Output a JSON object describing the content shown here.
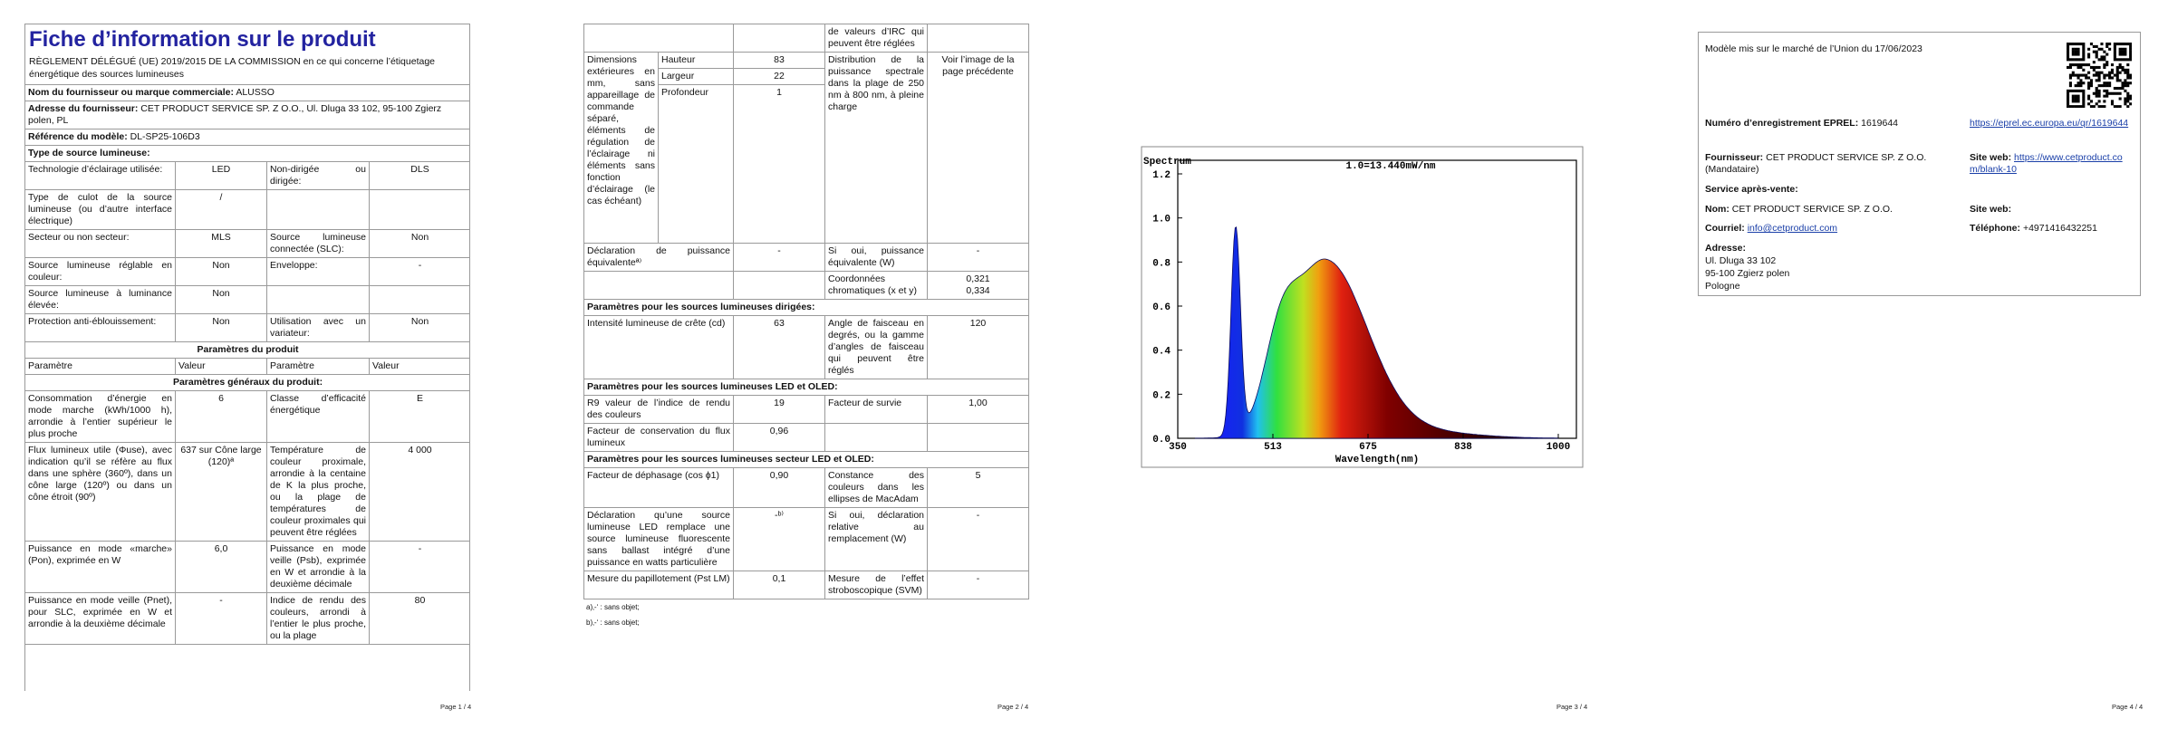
{
  "page1": {
    "title": "Fiche d’information sur le produit",
    "regulation": "RÈGLEMENT DÉLÉGUÉ (UE) 2019/2015 DE LA COMMISSION en ce qui concerne l’étiquetage énergétique des sources lumineuses",
    "supplier": {
      "label": "Nom du fournisseur ou marque commerciale:",
      "value": "ALUSSO"
    },
    "address": {
      "label": "Adresse du fournisseur:",
      "value": "CET PRODUCT SERVICE SP. Z O.O., Ul. Dluga 33 102, 95-100 Zgierz polen, PL"
    },
    "model": {
      "label": "Référence du modèle:",
      "value": "DL-SP25-106D3"
    },
    "type_heading": "Type de source lumineuse:",
    "type_rows": [
      [
        "Technologie d’éclairage utilisée:",
        "LED",
        "Non-dirigée ou dirigée:",
        "DLS"
      ],
      [
        "Type de culot de la source lumineuse (ou d’autre interface électrique)",
        "/"
      ],
      [
        "Secteur ou non secteur:",
        "MLS",
        "Source lumineuse connectée (SLC):",
        "Non"
      ],
      [
        "Source lumineuse réglable en couleur:",
        "Non",
        "Enveloppe:",
        "-"
      ],
      [
        "Source lumineuse à luminance élevée:",
        "Non"
      ],
      [
        "Protection anti-éblouissement:",
        "Non",
        "Utilisation avec un variateur:",
        "Non"
      ]
    ],
    "params_heading": "Paramètres du produit",
    "header": [
      "Paramètre",
      "Valeur",
      "Paramètre",
      "Valeur"
    ],
    "general_heading": "Paramètres généraux du produit:",
    "general_rows": [
      [
        "Consommation d’énergie en mode marche (kWh/1000 h), arrondie à l’entier supérieur le plus proche",
        "6",
        "Classe d’efficacité énergétique",
        "E"
      ],
      [
        "Flux lumineux utile (Φuse), avec indication qu’il se réfère au flux dans une sphère (360º), dans un cône large (120º) ou dans un cône étroit (90º)",
        "637 sur Cône large (120)ª",
        "Température de couleur proximale, arrondie à la centaine de K la plus proche, ou la plage de températures de couleur proximales qui peuvent être réglées",
        "4 000"
      ],
      [
        "Puissance en mode «marche» (Pon), exprimée en W",
        "6,0",
        "Puissance en mode veille (Psb), exprimée en W et arrondie à la deuxième décimale",
        "-"
      ],
      [
        "Puissance en mode veille (Pnet), pour SLC, exprimée en W et arrondie à la deuxième décimale",
        "-",
        "Indice de rendu des couleurs, arrondi à l’entier le plus proche, ou la plage",
        "80"
      ]
    ],
    "page_number": "Page 1 / 4"
  },
  "page2": {
    "cri_continued": "de valeurs d’IRC qui peuvent être réglées",
    "dimensions": {
      "label": "Dimensions extérieures en mm, sans appareillage de commande séparé, éléments de régulation de l’éclairage ni éléments sans fonction d’éclairage (le cas échéant)",
      "rows": [
        [
          "Hauteur",
          "83"
        ],
        [
          "Largeur",
          "22"
        ],
        [
          "Profondeur",
          "1"
        ]
      ],
      "spectral_label": "Distribution de la puissance spectrale dans la plage de 250 nm à 800 nm, à pleine charge",
      "spectral_value": "Voir l’image de la page précédente"
    },
    "equivalent": [
      "Déclaration de puissance équivalenteª⁾",
      "-",
      "Si oui, puissance équivalente (W)",
      "-"
    ],
    "chromaticity": {
      "label": "Coordonnées chromatiques (x et y)",
      "x": "0,321",
      "y": "0,334"
    },
    "directional_heading": "Paramètres pour les sources lumineuses dirigées:",
    "directional_row": [
      "Intensité lumineuse de crête (cd)",
      "63",
      "Angle de faisceau en degrés, ou la gamme d’angles de faisceau qui peuvent être réglés",
      "120"
    ],
    "led_heading": "Paramètres pour les sources lumineuses LED et OLED:",
    "led_rows": [
      [
        "R9 valeur de l’indice de rendu des couleurs",
        "19",
        "Facteur de survie",
        "1,00"
      ],
      [
        "Facteur de conservation du flux lumineux",
        "0,96"
      ]
    ],
    "mains_heading": "Paramètres pour les sources lumineuses secteur LED et OLED:",
    "mains_rows": [
      [
        "Facteur de déphasage (cos ϕ1)",
        "0,90",
        "Constance des couleurs dans les ellipses de MacAdam",
        "5"
      ],
      [
        "Déclaration qu’une source lumineuse LED remplace une source lumineuse fluorescente sans ballast intégré d’une puissance en watts particulière",
        "-ᵇ⁾",
        "Si oui, déclaration relative au remplacement (W)",
        "-"
      ],
      [
        "Mesure du papillotement (Pst LM)",
        "0,1",
        "Mesure de l’effet stroboscopique (SVM)",
        "-"
      ]
    ],
    "notes": [
      "a)‚-‘ : sans objet;",
      "b)‚-‘ : sans objet;"
    ],
    "page_number": "Page 2 / 4"
  },
  "page3": {
    "figure": {
      "title": "Spectrum",
      "scale": "1.0=13.440mW/nm",
      "yticks": [
        "1.2",
        "1.0",
        "0.8",
        "0.6",
        "0.4",
        "0.2",
        "0.0"
      ],
      "xticks": [
        "350",
        "513",
        "675",
        "838",
        "1000"
      ],
      "xlabel": "Wavelength(nm)"
    },
    "page_number": "Page 3 / 4"
  },
  "page4": {
    "market": "Modèle mis sur le marché de l’Union du 17/06/2023",
    "eprel": {
      "label": "Numéro d’enregistrement EPREL:",
      "value": "1619644",
      "link": "https://eprel.ec.europa.eu/qr/1619644"
    },
    "supplier": {
      "label": "Fournisseur:",
      "value": "CET PRODUCT SERVICE SP. Z O.O. (Mandataire)",
      "site_label": "Site web:",
      "site": "https://www.cetproduct.com/blank-10"
    },
    "service_heading": "Service après-vente:",
    "name": {
      "label": "Nom:",
      "value": "CET PRODUCT SERVICE SP. Z O.O.",
      "site_label": "Site web:"
    },
    "email": {
      "label": "Courriel:",
      "value": "info@cetproduct.com",
      "phone_label": "Téléphone:",
      "phone": "+4971416432251"
    },
    "address": {
      "label": "Adresse:",
      "lines": [
        "Ul. Dluga 33 102",
        "95-100 Zgierz polen",
        "Pologne"
      ]
    },
    "page_number": "Page 4 / 4"
  }
}
